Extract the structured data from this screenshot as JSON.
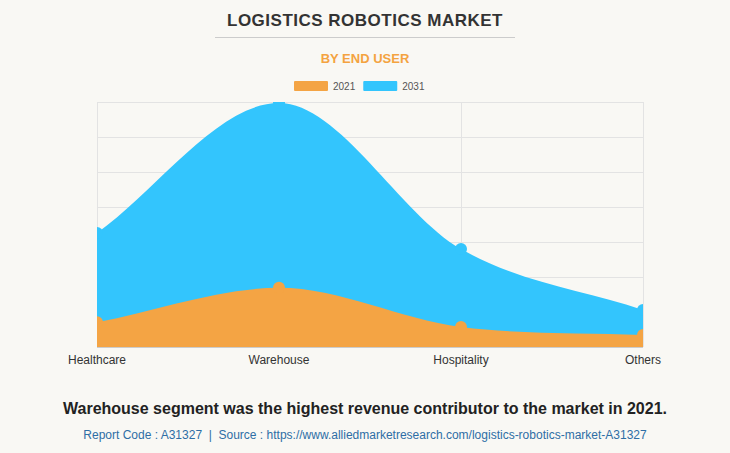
{
  "chart_data": {
    "type": "area",
    "title": "LOGISTICS ROBOTICS MARKET",
    "subtitle": "BY END USER",
    "categories": [
      "Healthcare",
      "Warehouse",
      "Hospitality",
      "Others"
    ],
    "series": [
      {
        "name": "2021",
        "color": "#f4a444",
        "values": [
          0.71,
          1.69,
          0.57,
          0.34
        ]
      },
      {
        "name": "2031",
        "color": "#33c5fd",
        "values": [
          3.26,
          6.97,
          2.8,
          1.06
        ]
      }
    ],
    "ylim": [
      0,
      7
    ],
    "yticks": [
      0,
      1,
      2,
      3,
      4,
      5,
      6,
      7
    ],
    "grid": true,
    "legend": "top",
    "tick_labels": "x",
    "marker": "circle",
    "annotations": [
      "Warehouse segment was the highest revenue contributor to the market in 2021.",
      "Report Code : A31327  |  Source : https://www.alliedmarketresearch.com/logistics-robotics-market-A31327"
    ]
  }
}
